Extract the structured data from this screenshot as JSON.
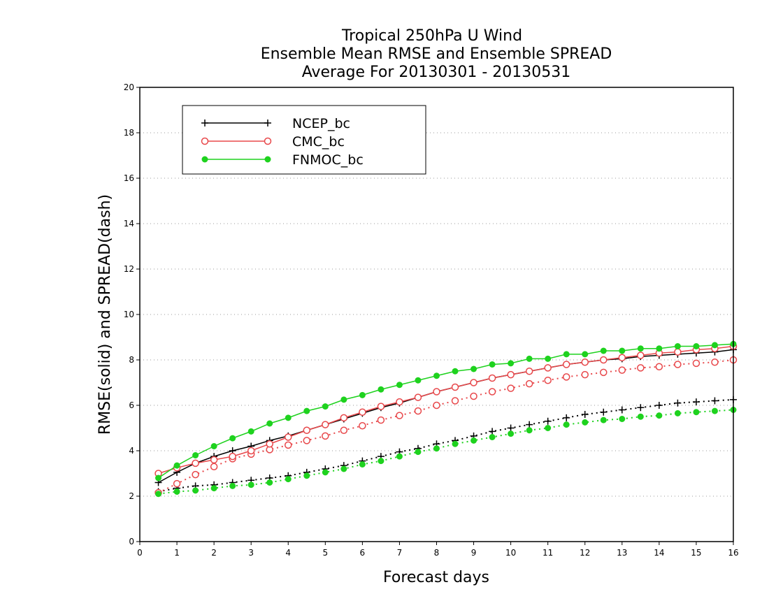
{
  "chart_data": {
    "type": "line",
    "title": [
      "Tropical 250hPa U Wind",
      "Ensemble Mean RMSE and Ensemble SPREAD",
      "Average For 20130301 - 20130531"
    ],
    "xlabel": "Forecast days",
    "ylabel": "RMSE(solid) and SPREAD(dash)",
    "xlim": [
      0,
      16
    ],
    "ylim": [
      0,
      20
    ],
    "x_ticks": [
      0,
      1,
      2,
      3,
      4,
      5,
      6,
      7,
      8,
      9,
      10,
      11,
      12,
      13,
      14,
      15,
      16
    ],
    "y_ticks": [
      0,
      2,
      4,
      6,
      8,
      10,
      12,
      14,
      16,
      18,
      20
    ],
    "grid": "horizontal dotted",
    "legend_position": "top-left",
    "x": [
      0.5,
      1,
      1.5,
      2,
      2.5,
      3,
      3.5,
      4,
      4.5,
      5,
      5.5,
      6,
      6.5,
      7,
      7.5,
      8,
      8.5,
      9,
      9.5,
      10,
      10.5,
      11,
      11.5,
      12,
      12.5,
      13,
      13.5,
      14,
      14.5,
      15,
      15.5,
      16
    ],
    "series": [
      {
        "name": "NCEP_bc",
        "color": "#000000",
        "marker": "plus",
        "rmse": [
          2.6,
          3.05,
          3.45,
          3.75,
          4.0,
          4.2,
          4.45,
          4.65,
          4.9,
          5.15,
          5.4,
          5.65,
          5.9,
          6.1,
          6.35,
          6.6,
          6.8,
          7.0,
          7.2,
          7.35,
          7.5,
          7.65,
          7.8,
          7.9,
          8.0,
          8.05,
          8.15,
          8.2,
          8.25,
          8.3,
          8.35,
          8.45
        ],
        "spread": [
          2.2,
          2.35,
          2.45,
          2.5,
          2.6,
          2.7,
          2.8,
          2.9,
          3.05,
          3.2,
          3.35,
          3.55,
          3.75,
          3.95,
          4.1,
          4.3,
          4.45,
          4.65,
          4.85,
          5.0,
          5.15,
          5.3,
          5.45,
          5.6,
          5.7,
          5.8,
          5.9,
          6.0,
          6.1,
          6.15,
          6.2,
          6.25
        ]
      },
      {
        "name": "CMC_bc",
        "color": "#e8484b",
        "marker": "open-circle",
        "rmse": [
          3.0,
          3.25,
          3.45,
          3.6,
          3.75,
          4.0,
          4.3,
          4.6,
          4.9,
          5.15,
          5.45,
          5.7,
          5.95,
          6.15,
          6.35,
          6.6,
          6.8,
          7.0,
          7.2,
          7.35,
          7.5,
          7.65,
          7.8,
          7.9,
          8.0,
          8.1,
          8.2,
          8.3,
          8.35,
          8.45,
          8.5,
          8.6
        ],
        "spread": [
          2.15,
          2.55,
          2.95,
          3.3,
          3.65,
          3.85,
          4.05,
          4.25,
          4.45,
          4.65,
          4.9,
          5.1,
          5.35,
          5.55,
          5.75,
          6.0,
          6.2,
          6.4,
          6.6,
          6.75,
          6.95,
          7.1,
          7.25,
          7.35,
          7.45,
          7.55,
          7.65,
          7.7,
          7.8,
          7.85,
          7.9,
          8.0
        ]
      },
      {
        "name": "FNMOC_bc",
        "color": "#1ed21e",
        "marker": "filled-circle",
        "rmse": [
          2.8,
          3.35,
          3.8,
          4.2,
          4.55,
          4.85,
          5.2,
          5.45,
          5.75,
          5.95,
          6.25,
          6.45,
          6.7,
          6.9,
          7.1,
          7.3,
          7.5,
          7.6,
          7.8,
          7.85,
          8.05,
          8.05,
          8.25,
          8.25,
          8.4,
          8.4,
          8.5,
          8.5,
          8.6,
          8.6,
          8.65,
          8.7
        ],
        "spread": [
          2.1,
          2.2,
          2.25,
          2.35,
          2.45,
          2.5,
          2.6,
          2.75,
          2.9,
          3.05,
          3.2,
          3.4,
          3.55,
          3.75,
          3.95,
          4.1,
          4.3,
          4.45,
          4.6,
          4.75,
          4.9,
          5.0,
          5.15,
          5.25,
          5.35,
          5.4,
          5.5,
          5.55,
          5.65,
          5.7,
          5.75,
          5.8
        ]
      }
    ]
  }
}
